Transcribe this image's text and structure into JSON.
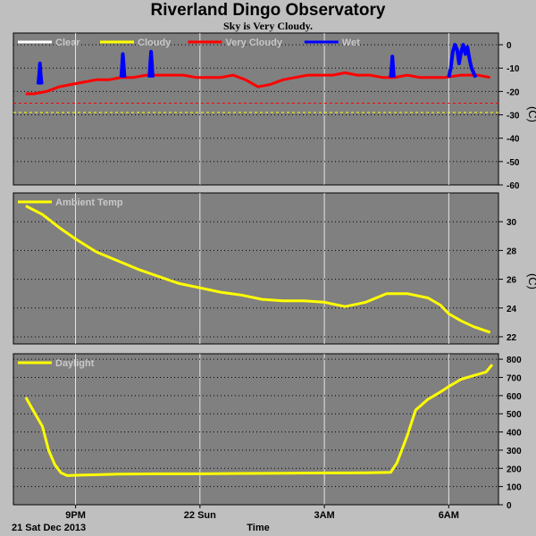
{
  "title": "Riverland Dingo Observatory",
  "subtitle": "Sky is Very Cloudy.",
  "x_axis": {
    "ticks": [
      "9PM",
      "22 Sun",
      "3AM",
      "6AM"
    ],
    "date_label": "21 Sat Dec 2013",
    "label": "Time"
  },
  "chart_data": [
    {
      "type": "line",
      "name": "sky",
      "legend": [
        {
          "label": "Clear",
          "color": "#ffffff"
        },
        {
          "label": "Cloudy",
          "color": "#ffff00"
        },
        {
          "label": "Very Cloudy",
          "color": "#ff0000"
        },
        {
          "label": "Wet",
          "color": "#0000ff"
        }
      ],
      "unit": "(C)",
      "ylim": [
        -60,
        5
      ],
      "yticks": [
        0,
        -10,
        -20,
        -30,
        -40,
        -50,
        -60
      ],
      "thresholds": [
        {
          "value": -25,
          "color": "#ff0000"
        },
        {
          "value": -29,
          "color": "#ffff00"
        }
      ],
      "series": [
        {
          "color": "#ff0000",
          "x": [
            19.8,
            20.0,
            20.3,
            20.6,
            20.9,
            21.2,
            21.5,
            21.8,
            22.1,
            22.4,
            22.7,
            23.0,
            23.3,
            23.6,
            23.9,
            24.2,
            24.5,
            24.8,
            25.1,
            25.4,
            25.7,
            26.0,
            26.3,
            26.6,
            26.9,
            27.2,
            27.5,
            27.8,
            28.1,
            28.4,
            28.7,
            29.0,
            29.3,
            29.6,
            29.9,
            30.3,
            30.7,
            31.0
          ],
          "y": [
            -21,
            -21,
            -20,
            -18,
            -17,
            -16,
            -15,
            -15,
            -14,
            -14,
            -13,
            -13,
            -13,
            -13,
            -14,
            -14,
            -14,
            -13,
            -15,
            -18,
            -17,
            -15,
            -14,
            -13,
            -13,
            -13,
            -12,
            -13,
            -13,
            -14,
            -14,
            -13,
            -14,
            -14,
            -14,
            -13,
            -13,
            -14
          ]
        },
        {
          "color": "#0000ff",
          "x": [
            20.1,
            20.12,
            20.14,
            20.16,
            20.18
          ],
          "y": [
            -17,
            -13,
            -8,
            -13,
            -17
          ]
        },
        {
          "color": "#0000ff",
          "x": [
            22.1,
            22.12,
            22.14,
            22.16,
            22.18
          ],
          "y": [
            -14,
            -9,
            -4,
            -9,
            -14
          ]
        },
        {
          "color": "#0000ff",
          "x": [
            22.78,
            22.8,
            22.82,
            22.84,
            22.86
          ],
          "y": [
            -14,
            -8,
            -3,
            -8,
            -14
          ]
        },
        {
          "color": "#0000ff",
          "x": [
            28.6,
            28.62,
            28.64,
            28.66,
            28.68
          ],
          "y": [
            -14,
            -10,
            -5,
            -10,
            -14
          ]
        },
        {
          "color": "#0000ff",
          "x": [
            30.0,
            30.05,
            30.1,
            30.15,
            30.2,
            30.25,
            30.3,
            30.35,
            30.4,
            30.45,
            30.5,
            30.55,
            30.6,
            30.65
          ],
          "y": [
            -14,
            -10,
            -3,
            0,
            -2,
            -8,
            -3,
            0,
            -4,
            -1,
            -6,
            -10,
            -12,
            -14
          ]
        }
      ]
    },
    {
      "type": "line",
      "name": "ambient",
      "legend": [
        {
          "label": "Ambient Temp",
          "color": "#ffff00"
        }
      ],
      "unit": "(C)",
      "ylim": [
        21.5,
        32
      ],
      "yticks": [
        22,
        24,
        26,
        28,
        30
      ],
      "series": [
        {
          "color": "#ffff00",
          "x": [
            19.8,
            20.2,
            20.6,
            21.0,
            21.5,
            22.0,
            22.5,
            23.0,
            23.5,
            24.0,
            24.5,
            25.0,
            25.5,
            26.0,
            26.5,
            27.0,
            27.5,
            28.0,
            28.5,
            29.0,
            29.5,
            29.8,
            30.0,
            30.3,
            30.6,
            31.0
          ],
          "y": [
            31.1,
            30.5,
            29.6,
            28.8,
            27.9,
            27.3,
            26.7,
            26.2,
            25.7,
            25.4,
            25.1,
            24.9,
            24.6,
            24.5,
            24.5,
            24.4,
            24.1,
            24.4,
            25.0,
            25.0,
            24.7,
            24.2,
            23.6,
            23.1,
            22.7,
            22.3
          ]
        }
      ]
    },
    {
      "type": "line",
      "name": "daylight",
      "legend": [
        {
          "label": "Daylight",
          "color": "#ffff00"
        }
      ],
      "unit": "",
      "ylim": [
        0,
        830
      ],
      "yticks": [
        0,
        100,
        200,
        300,
        400,
        500,
        600,
        700,
        800
      ],
      "series": [
        {
          "color": "#ffff00",
          "x": [
            19.8,
            20.0,
            20.2,
            20.35,
            20.5,
            20.65,
            20.8,
            21.0,
            22.0,
            23.0,
            24.0,
            25.0,
            26.0,
            27.0,
            28.0,
            28.6,
            28.75,
            28.9,
            29.0,
            29.2,
            29.5,
            29.8,
            30.0,
            30.3,
            30.6,
            30.9,
            31.05
          ],
          "y": [
            590,
            510,
            430,
            300,
            220,
            175,
            160,
            162,
            168,
            170,
            170,
            172,
            173,
            175,
            176,
            178,
            230,
            320,
            380,
            520,
            580,
            620,
            650,
            690,
            710,
            730,
            770
          ]
        }
      ]
    }
  ]
}
